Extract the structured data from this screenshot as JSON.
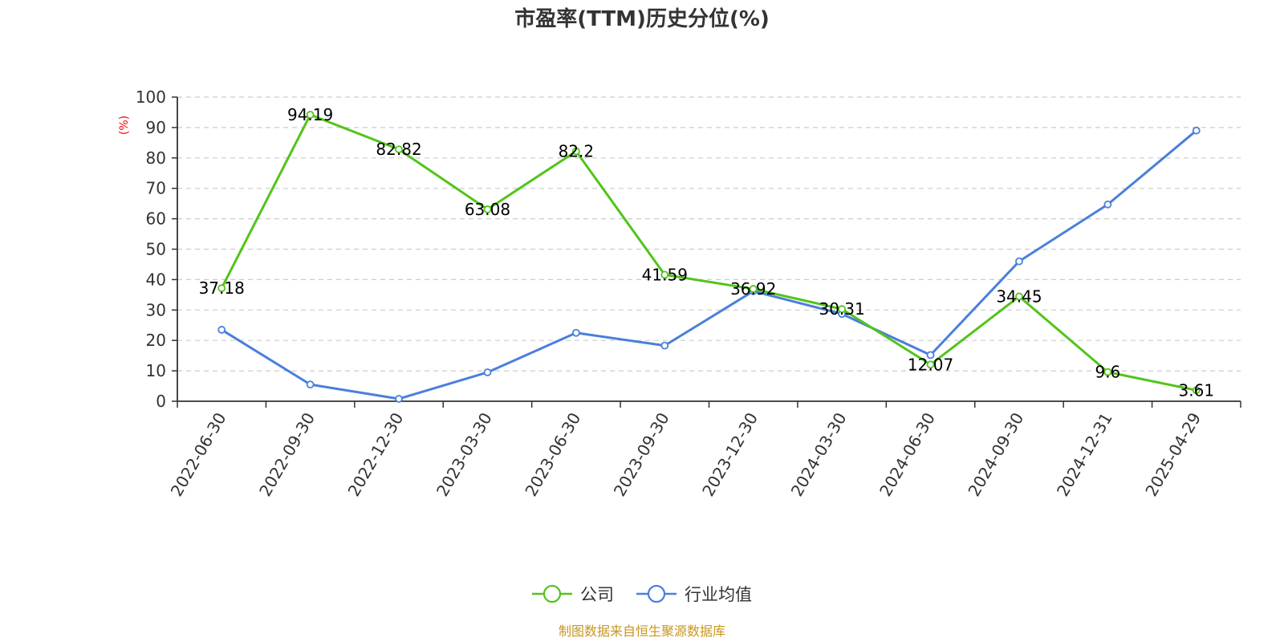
{
  "chart_data": {
    "type": "line",
    "title": "市盈率(TTM)历史分位(%)",
    "ylabel": "(%)",
    "ylim": [
      0,
      100
    ],
    "yticks": [
      0,
      10,
      20,
      30,
      40,
      50,
      60,
      70,
      80,
      90,
      100
    ],
    "grid": true,
    "legend_position": "bottom",
    "categories": [
      "2022-06-30",
      "2022-09-30",
      "2022-12-30",
      "2023-03-30",
      "2023-06-30",
      "2023-09-30",
      "2023-12-30",
      "2024-03-30",
      "2024-06-30",
      "2024-09-30",
      "2024-12-31",
      "2025-04-29"
    ],
    "series": [
      {
        "name": "公司",
        "color": "#52c41a",
        "values": [
          37.18,
          94.19,
          82.82,
          63.08,
          82.2,
          41.59,
          36.92,
          30.31,
          12.07,
          34.45,
          9.6,
          3.61
        ],
        "data_labels": [
          "37.18",
          "94.19",
          "82.82",
          "63.08",
          "82.2",
          "41.59",
          "36.92",
          "30.31",
          "12.07",
          "34.45",
          "9.6",
          "3.61"
        ]
      },
      {
        "name": "行业均值",
        "color": "#4a7fdc",
        "values": [
          23.5,
          5.5,
          0.8,
          9.5,
          22.5,
          18.3,
          36.2,
          28.7,
          15.2,
          46,
          64.7,
          89
        ]
      }
    ],
    "source": "制图数据来自恒生聚源数据库",
    "colors": {
      "unit_label": "#ff0000",
      "source": "#c8961e",
      "axis": "#333333",
      "grid": "#cccccc"
    }
  }
}
